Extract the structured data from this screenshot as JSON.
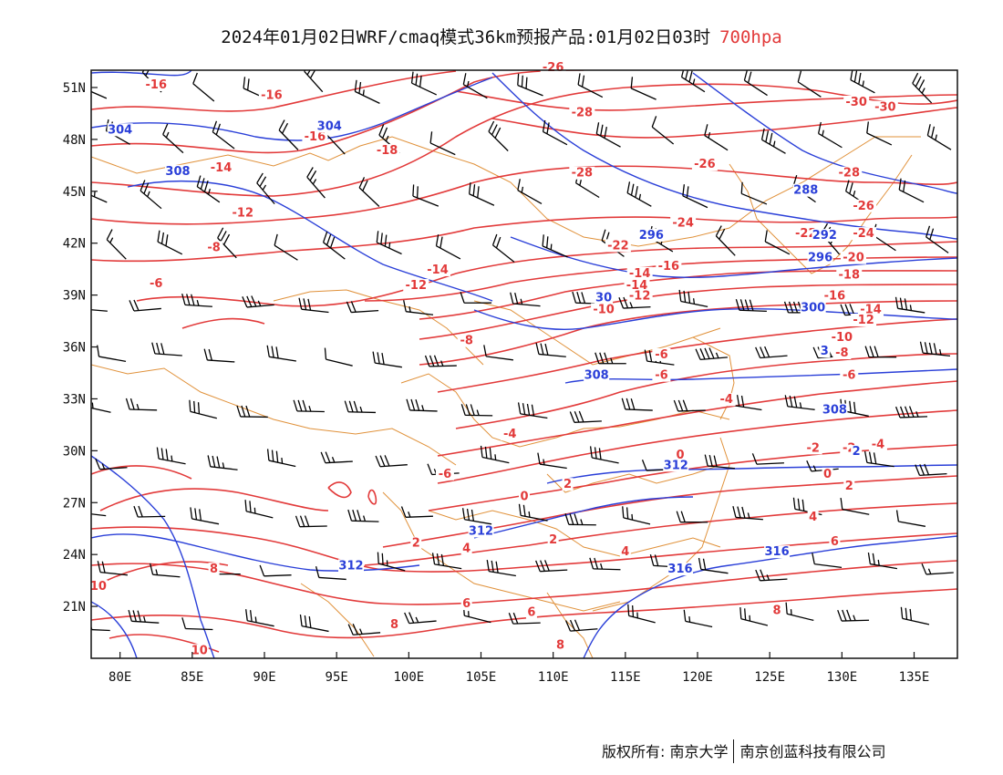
{
  "title": {
    "main": "2024年01月02日WRF/cmaq模式36km预报产品:01月02日03时",
    "level": "700hpa"
  },
  "footer": {
    "copyright": "版权所有: 南京大学",
    "company": "南京创蓝科技有限公司"
  },
  "axes": {
    "lat_labels": [
      "51N",
      "48N",
      "45N",
      "42N",
      "39N",
      "36N",
      "33N",
      "30N",
      "27N",
      "24N",
      "21N"
    ],
    "lon_labels": [
      "80E",
      "85E",
      "90E",
      "95E",
      "100E",
      "105E",
      "110E",
      "115E",
      "120E",
      "125E",
      "130E",
      "135E"
    ],
    "lon_range": [
      78,
      138
    ],
    "lat_range": [
      18,
      52
    ]
  },
  "colors": {
    "temperature": "#e23a3a",
    "geopotential": "#2a3fd8",
    "boundaries": "#e0913a",
    "wind_barbs": "#000000"
  },
  "temperature_labels": [
    {
      "text": "-16",
      "lon": 82.5,
      "lat": 51.0
    },
    {
      "text": "-16",
      "lon": 90.5,
      "lat": 50.4
    },
    {
      "text": "-16",
      "lon": 93.5,
      "lat": 48.0
    },
    {
      "text": "-18",
      "lon": 98.5,
      "lat": 47.2
    },
    {
      "text": "-14",
      "lon": 87.0,
      "lat": 46.2
    },
    {
      "text": "-12",
      "lon": 88.5,
      "lat": 43.6
    },
    {
      "text": "-8",
      "lon": 86.5,
      "lat": 41.6
    },
    {
      "text": "-6",
      "lon": 82.5,
      "lat": 39.5
    },
    {
      "text": "-14",
      "lon": 102.0,
      "lat": 40.3
    },
    {
      "text": "-12",
      "lon": 100.5,
      "lat": 39.4
    },
    {
      "text": "-26",
      "lon": 110.0,
      "lat": 52.0
    },
    {
      "text": "-28",
      "lon": 112.0,
      "lat": 49.4
    },
    {
      "text": "-28",
      "lon": 112.0,
      "lat": 45.9
    },
    {
      "text": "-26",
      "lon": 120.5,
      "lat": 46.4
    },
    {
      "text": "-24",
      "lon": 119.0,
      "lat": 43.0
    },
    {
      "text": "-22",
      "lon": 114.5,
      "lat": 41.7
    },
    {
      "text": "-14",
      "lon": 116.0,
      "lat": 40.1
    },
    {
      "text": "-16",
      "lon": 118.0,
      "lat": 40.5
    },
    {
      "text": "-14",
      "lon": 115.8,
      "lat": 39.4
    },
    {
      "text": "-12",
      "lon": 116.0,
      "lat": 38.8
    },
    {
      "text": "-10",
      "lon": 113.5,
      "lat": 38.0
    },
    {
      "text": "-8",
      "lon": 104.0,
      "lat": 36.2
    },
    {
      "text": "-6",
      "lon": 117.5,
      "lat": 35.4
    },
    {
      "text": "-6",
      "lon": 117.5,
      "lat": 34.2
    },
    {
      "text": "-4",
      "lon": 122.0,
      "lat": 32.8
    },
    {
      "text": "-4",
      "lon": 107.0,
      "lat": 30.8
    },
    {
      "text": "-6",
      "lon": 102.5,
      "lat": 28.5
    },
    {
      "text": "0",
      "lon": 108.0,
      "lat": 27.2
    },
    {
      "text": "2",
      "lon": 111.0,
      "lat": 27.9
    },
    {
      "text": "0",
      "lon": 118.8,
      "lat": 29.6
    },
    {
      "text": "2",
      "lon": 100.5,
      "lat": 24.5
    },
    {
      "text": "4",
      "lon": 104.0,
      "lat": 24.2
    },
    {
      "text": "2",
      "lon": 110.0,
      "lat": 24.7
    },
    {
      "text": "4",
      "lon": 115.0,
      "lat": 24.0
    },
    {
      "text": "6",
      "lon": 104.0,
      "lat": 21.0
    },
    {
      "text": "6",
      "lon": 108.5,
      "lat": 20.5
    },
    {
      "text": "8",
      "lon": 99.0,
      "lat": 19.8
    },
    {
      "text": "8",
      "lon": 110.5,
      "lat": 18.6
    },
    {
      "text": "8",
      "lon": 125.5,
      "lat": 20.6
    },
    {
      "text": "10",
      "lon": 78.5,
      "lat": 22.0
    },
    {
      "text": "10",
      "lon": 85.5,
      "lat": 18.3
    },
    {
      "text": "8",
      "lon": 86.5,
      "lat": 23.0
    },
    {
      "text": "-30",
      "lon": 131.0,
      "lat": 50.0
    },
    {
      "text": "-30",
      "lon": 133.0,
      "lat": 49.7
    },
    {
      "text": "-28",
      "lon": 130.5,
      "lat": 45.9
    },
    {
      "text": "-26",
      "lon": 131.5,
      "lat": 44.0
    },
    {
      "text": "-22",
      "lon": 127.5,
      "lat": 42.4
    },
    {
      "text": "-24",
      "lon": 131.5,
      "lat": 42.4
    },
    {
      "text": "-20",
      "lon": 130.8,
      "lat": 41.0
    },
    {
      "text": "-18",
      "lon": 130.5,
      "lat": 40.0
    },
    {
      "text": "-16",
      "lon": 129.5,
      "lat": 38.8
    },
    {
      "text": "-14",
      "lon": 132.0,
      "lat": 38.0
    },
    {
      "text": "-12",
      "lon": 131.5,
      "lat": 37.4
    },
    {
      "text": "-10",
      "lon": 130.0,
      "lat": 36.4
    },
    {
      "text": "-8",
      "lon": 130.0,
      "lat": 35.5
    },
    {
      "text": "-6",
      "lon": 130.5,
      "lat": 34.2
    },
    {
      "text": "-2",
      "lon": 128.0,
      "lat": 30.0
    },
    {
      "text": "-4",
      "lon": 132.5,
      "lat": 30.2
    },
    {
      "text": "-2",
      "lon": 130.5,
      "lat": 30.0
    },
    {
      "text": "0",
      "lon": 129.0,
      "lat": 28.5
    },
    {
      "text": "2",
      "lon": 130.5,
      "lat": 27.8
    },
    {
      "text": "4",
      "lon": 128.0,
      "lat": 26.0
    },
    {
      "text": "6",
      "lon": 129.5,
      "lat": 24.6
    }
  ],
  "geopotential_labels": [
    {
      "text": "304",
      "lon": 80.0,
      "lat": 48.4
    },
    {
      "text": "304",
      "lon": 94.5,
      "lat": 48.6
    },
    {
      "text": "308",
      "lon": 84.0,
      "lat": 46.0
    },
    {
      "text": "296",
      "lon": 116.8,
      "lat": 42.3
    },
    {
      "text": "288",
      "lon": 127.5,
      "lat": 44.9
    },
    {
      "text": "292",
      "lon": 128.8,
      "lat": 42.3
    },
    {
      "text": "296",
      "lon": 128.5,
      "lat": 41.0
    },
    {
      "text": "30",
      "lon": 113.5,
      "lat": 38.7
    },
    {
      "text": "300",
      "lon": 128.0,
      "lat": 38.1
    },
    {
      "text": "3",
      "lon": 128.8,
      "lat": 35.6
    },
    {
      "text": "308",
      "lon": 113.0,
      "lat": 34.2
    },
    {
      "text": "308",
      "lon": 129.5,
      "lat": 32.2
    },
    {
      "text": "312",
      "lon": 118.5,
      "lat": 29.0
    },
    {
      "text": "312",
      "lon": 105.0,
      "lat": 25.2
    },
    {
      "text": "312",
      "lon": 96.0,
      "lat": 23.2
    },
    {
      "text": "316",
      "lon": 125.5,
      "lat": 24.0
    },
    {
      "text": "316",
      "lon": 118.8,
      "lat": 23.0
    },
    {
      "text": "2",
      "lon": 131.0,
      "lat": 29.8
    }
  ]
}
